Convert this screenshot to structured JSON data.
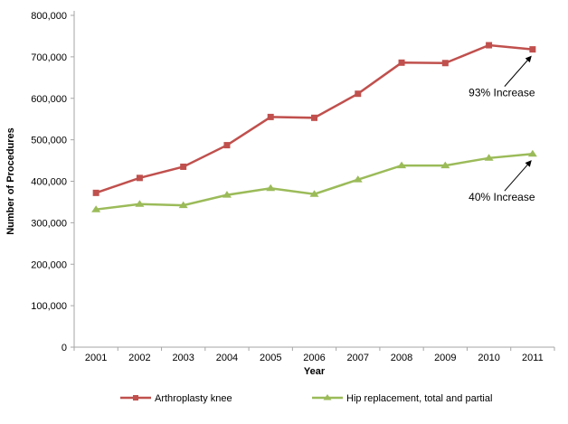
{
  "figure": {
    "title": "",
    "background": "#ffffff",
    "axis_color": "#a6a6a6",
    "text_color": "#000000",
    "annotation_arrow_color": "#000000"
  },
  "chart_data": {
    "type": "line",
    "x": [
      "2001",
      "2002",
      "2003",
      "2004",
      "2005",
      "2006",
      "2007",
      "2008",
      "2009",
      "2010",
      "2011"
    ],
    "series": [
      {
        "name": "Arthroplasty knee",
        "color": "#C0504D",
        "marker": "square",
        "values": [
          372000,
          408000,
          435000,
          487000,
          555000,
          553000,
          611000,
          686000,
          685000,
          728000,
          718000
        ]
      },
      {
        "name": "Hip replacement, total and partial",
        "color": "#9BBB59",
        "marker": "triangle",
        "values": [
          332000,
          345000,
          342000,
          367000,
          383000,
          369000,
          404000,
          438000,
          438000,
          456000,
          466000
        ]
      }
    ],
    "title": "",
    "xlabel": "Year",
    "ylabel": "Number of Procedures",
    "ylim": [
      0,
      800000
    ],
    "ytick_values": [
      0,
      100000,
      200000,
      300000,
      400000,
      500000,
      600000,
      700000,
      800000
    ],
    "ytick_labels": [
      "0",
      "100,000",
      "200,000",
      "300,000",
      "400,000",
      "500,000",
      "600,000",
      "700,000",
      "800,000"
    ],
    "grid": false,
    "legend_position": "bottom",
    "annotations": [
      {
        "text": "93% Increase",
        "series": "Arthroplasty knee",
        "x": "2011"
      },
      {
        "text": "40% Increase",
        "series": "Hip replacement, total and partial",
        "x": "2011"
      }
    ]
  }
}
